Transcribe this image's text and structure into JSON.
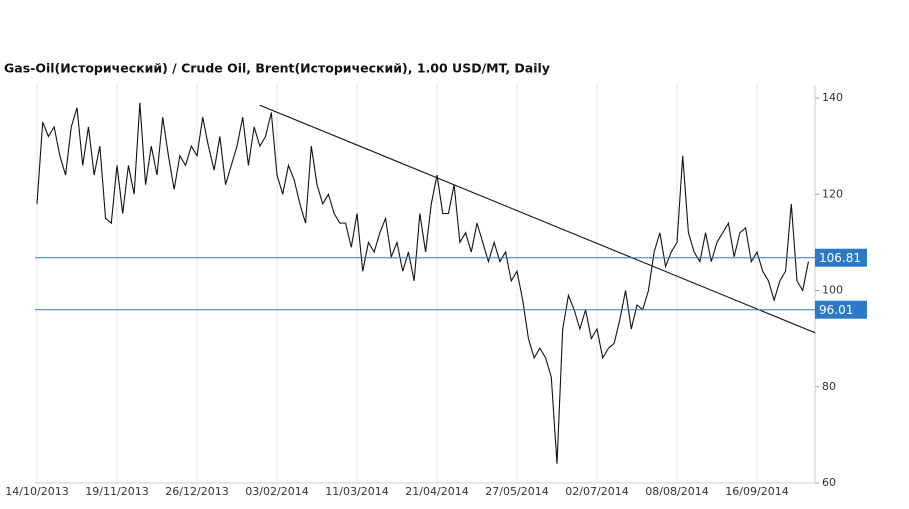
{
  "chart_data": {
    "type": "line",
    "title": "Gas-Oil(Исторический) / Crude Oil, Brent(Исторический), 1.00 USD/MT, Daily",
    "categories": [
      "14/10/2013",
      null,
      null,
      null,
      null,
      null,
      null,
      null,
      null,
      null,
      null,
      null,
      null,
      null,
      "19/11/2013",
      null,
      null,
      null,
      null,
      null,
      null,
      null,
      null,
      null,
      null,
      null,
      null,
      null,
      "26/12/2013",
      null,
      null,
      null,
      null,
      null,
      null,
      null,
      null,
      null,
      null,
      null,
      null,
      null,
      "03/02/2014",
      null,
      null,
      null,
      null,
      null,
      null,
      null,
      null,
      null,
      null,
      null,
      null,
      null,
      "11/03/2014",
      null,
      null,
      null,
      null,
      null,
      null,
      null,
      null,
      null,
      null,
      null,
      null,
      null,
      "21/04/2014",
      null,
      null,
      null,
      null,
      null,
      null,
      null,
      null,
      null,
      null,
      null,
      null,
      null,
      "27/05/2014",
      null,
      null,
      null,
      null,
      null,
      null,
      null,
      null,
      null,
      null,
      null,
      null,
      null,
      "02/07/2014",
      null,
      null,
      null,
      null,
      null,
      null,
      null,
      null,
      null,
      null,
      null,
      null,
      null,
      "08/08/2014",
      null,
      null,
      null,
      null,
      null,
      null,
      null,
      null,
      null,
      null,
      null,
      null,
      null,
      "16/09/2014",
      null,
      null,
      null,
      null,
      null,
      null,
      null,
      null,
      null
    ],
    "values": [
      118,
      135,
      132,
      134,
      128,
      124,
      134,
      138,
      126,
      134,
      124,
      130,
      115,
      114,
      126,
      116,
      126,
      120,
      139,
      122,
      130,
      124,
      136,
      128,
      121,
      128,
      126,
      130,
      128,
      136,
      130,
      125,
      132,
      122,
      126,
      130,
      136,
      126,
      134,
      130,
      132,
      137,
      124,
      120,
      126,
      123,
      118,
      114,
      130,
      122,
      118,
      120,
      116,
      114,
      114,
      109,
      116,
      104,
      110,
      108,
      112,
      115,
      107,
      110,
      104,
      108,
      102,
      116,
      108,
      118,
      124,
      116,
      116,
      122,
      110,
      112,
      108,
      114,
      110,
      106,
      110,
      106,
      108,
      102,
      104,
      98,
      90,
      86,
      88,
      86,
      82,
      64,
      92,
      99,
      96,
      92,
      96,
      90,
      92,
      86,
      88,
      89,
      94,
      100,
      92,
      97,
      96,
      100,
      108,
      112,
      105,
      108,
      110,
      128,
      112,
      108,
      106,
      112,
      106,
      110,
      112,
      114,
      107,
      112,
      113,
      106,
      108,
      104,
      102,
      98,
      102,
      104,
      118,
      102,
      100,
      106
    ],
    "color": "#111111",
    "ylim": [
      60,
      140
    ],
    "yticks": [
      60,
      80,
      100,
      120,
      140
    ],
    "hlines": [
      106.81,
      96.01
    ],
    "hline_color": "#2a7ac8",
    "trendline": {
      "x": [
        39,
        136.2
      ],
      "y": [
        138.5,
        91.2
      ]
    },
    "grid": true
  }
}
